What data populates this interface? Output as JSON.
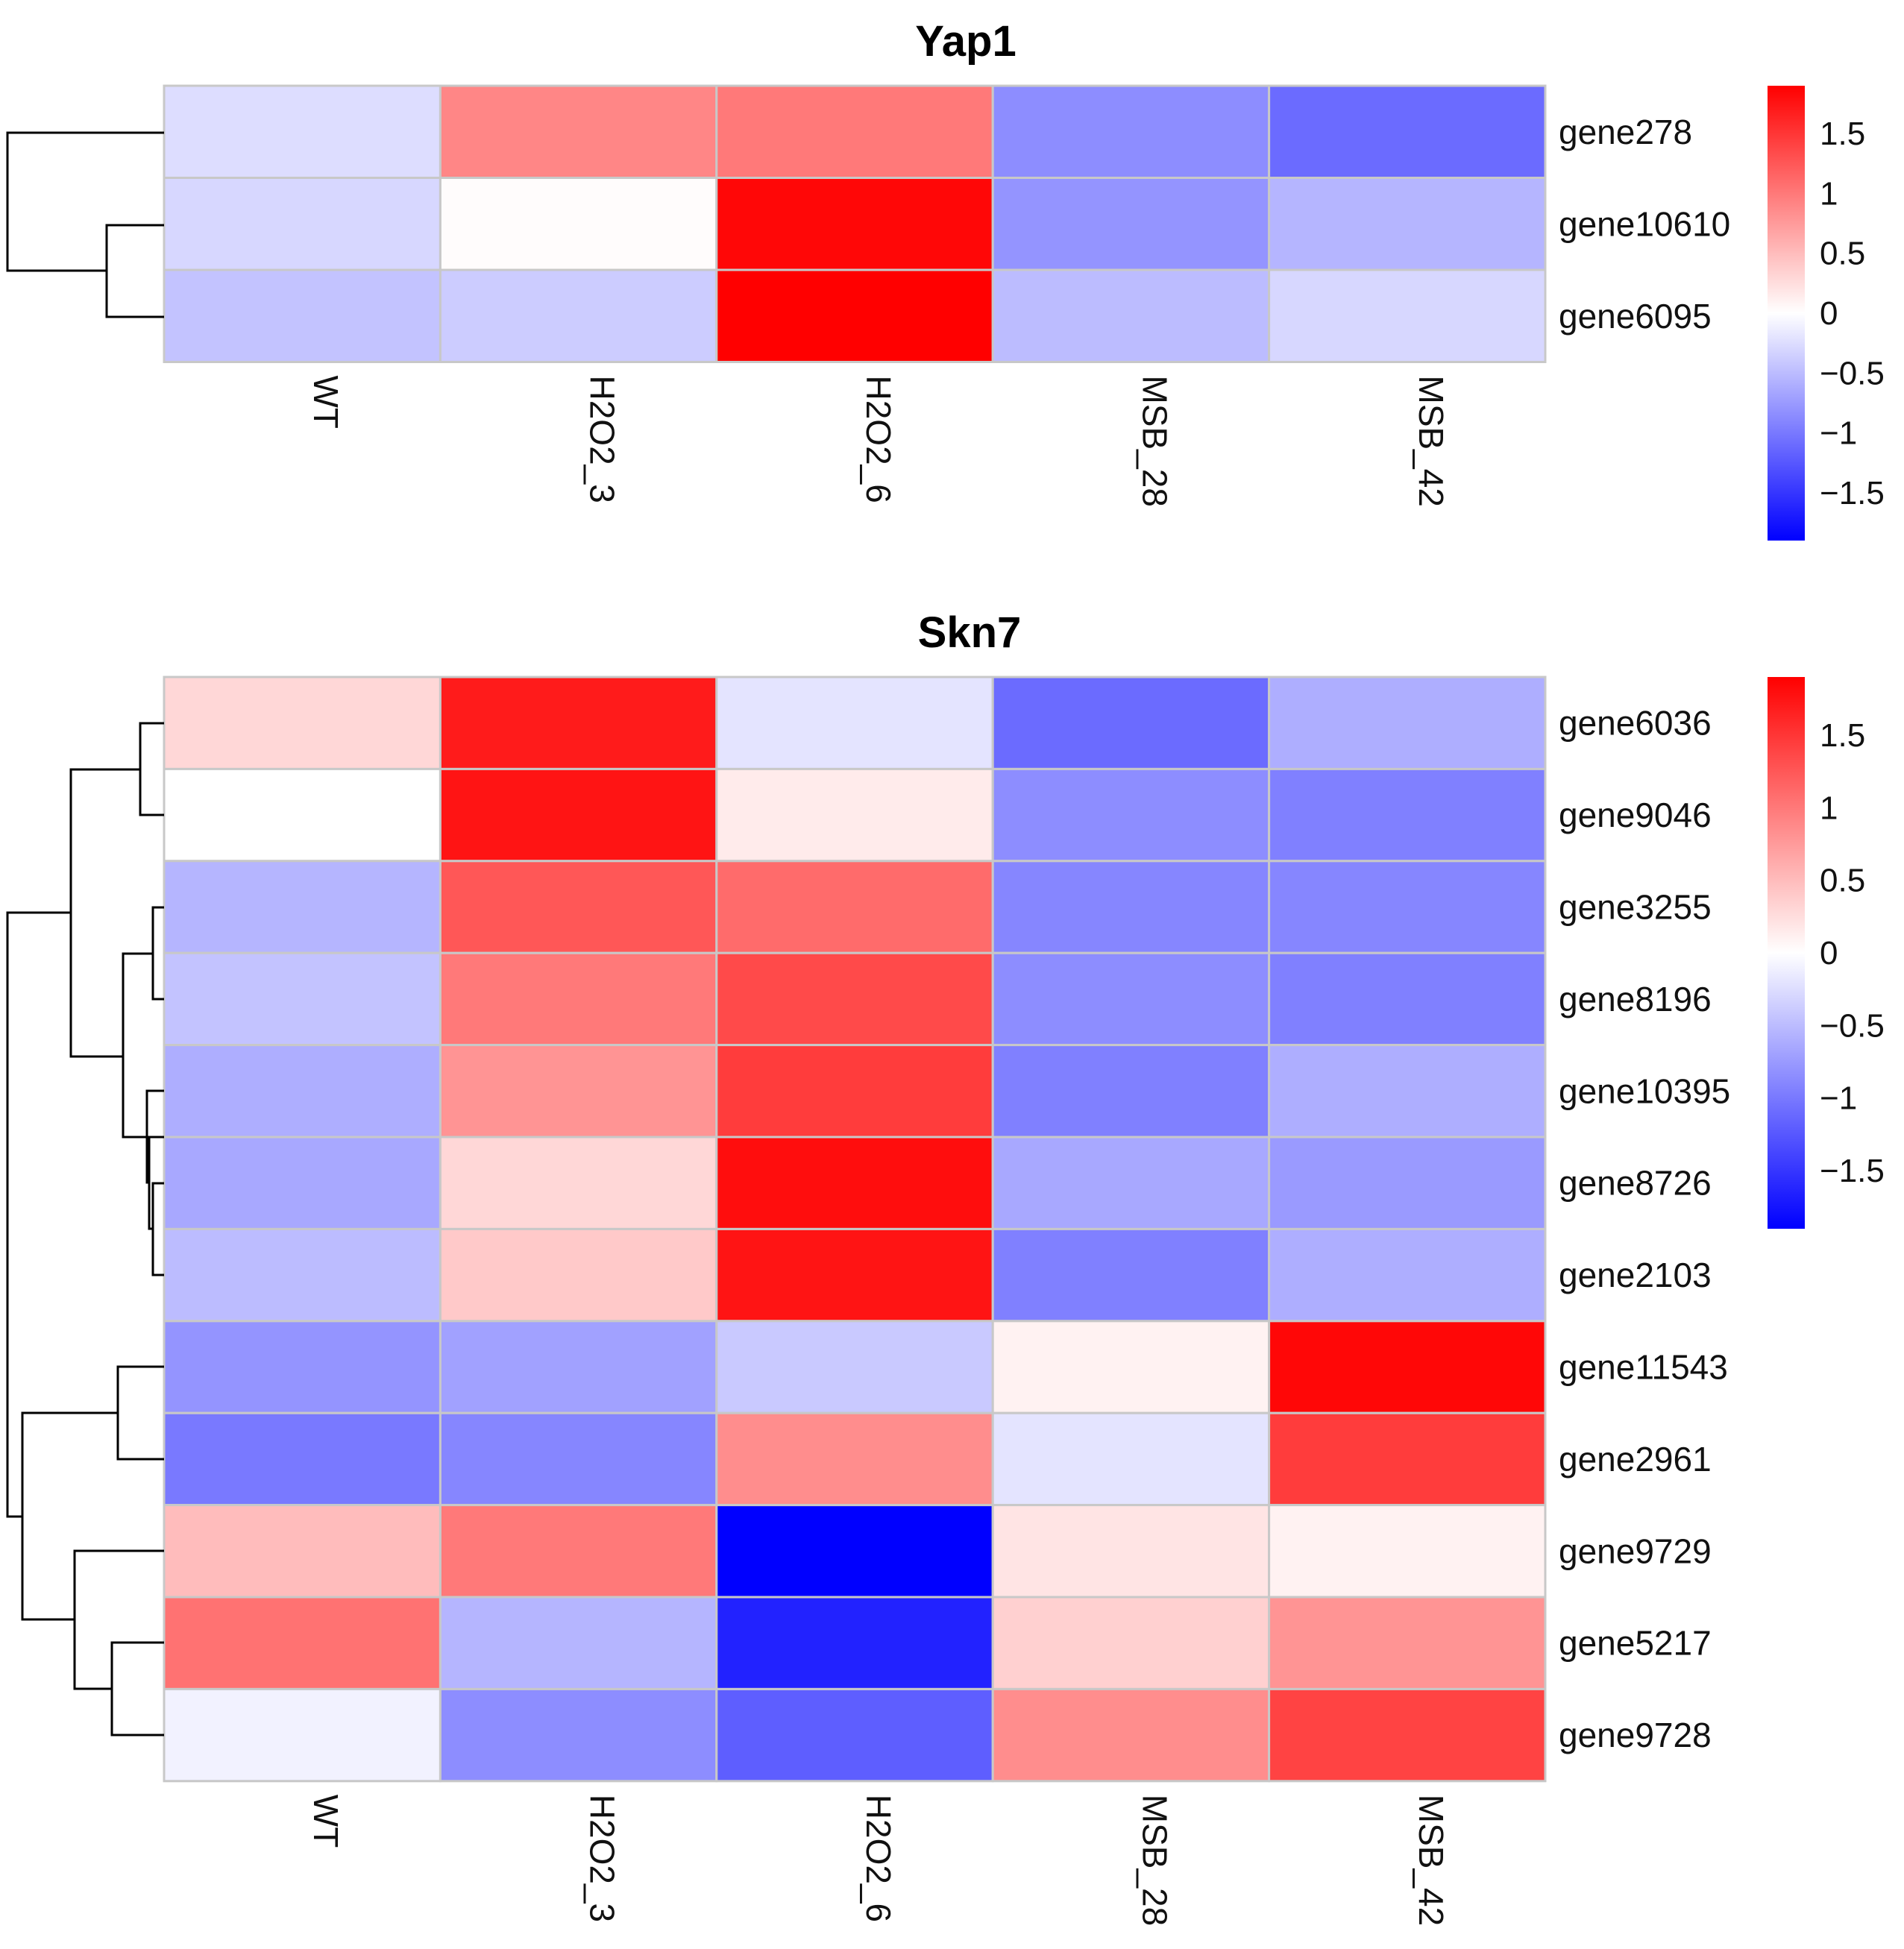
{
  "chart_data": [
    {
      "type": "heatmap",
      "title": "Yap1",
      "columns": [
        "WT",
        "H2O2_3",
        "H2O2_6",
        "MSB_28",
        "MSB_42"
      ],
      "rows": [
        "gene278",
        "gene10610",
        "gene6095"
      ],
      "values": [
        [
          -0.25,
          0.9,
          1.0,
          -0.85,
          -1.1
        ],
        [
          -0.3,
          0.02,
          1.85,
          -0.8,
          -0.55
        ],
        [
          -0.45,
          -0.38,
          1.9,
          -0.5,
          -0.3
        ]
      ],
      "legend": {
        "min": -1.9,
        "max": 1.9,
        "ticks": [
          1.5,
          1,
          0.5,
          0,
          -0.5,
          -1,
          -1.5
        ],
        "tick_labels": [
          "1.5",
          "1",
          "0.5",
          "0",
          "−0.5",
          "−1",
          "−1.5"
        ],
        "colors": [
          "#0000ff",
          "#ffffff",
          "#ff0000"
        ]
      }
    },
    {
      "type": "heatmap",
      "title": "Skn7",
      "columns": [
        "WT",
        "H2O2_3",
        "H2O2_6",
        "MSB_28",
        "MSB_42"
      ],
      "rows": [
        "gene6036",
        "gene9046",
        "gene3255",
        "gene8196",
        "gene10395",
        "gene8726",
        "gene2103",
        "gene11543",
        "gene2961",
        "gene9729",
        "gene5217",
        "gene9728"
      ],
      "values": [
        [
          0.3,
          1.7,
          -0.2,
          -1.1,
          -0.6
        ],
        [
          0.0,
          1.75,
          0.15,
          -0.85,
          -0.95
        ],
        [
          -0.55,
          1.25,
          1.1,
          -0.9,
          -0.9
        ],
        [
          -0.45,
          1.0,
          1.35,
          -0.85,
          -0.95
        ],
        [
          -0.6,
          0.8,
          1.45,
          -0.95,
          -0.6
        ],
        [
          -0.65,
          0.3,
          1.8,
          -0.65,
          -0.75
        ],
        [
          -0.5,
          0.4,
          1.75,
          -0.95,
          -0.6
        ],
        [
          -0.8,
          -0.7,
          -0.4,
          0.1,
          1.85
        ],
        [
          -1.0,
          -0.9,
          0.85,
          -0.2,
          1.45
        ],
        [
          0.5,
          1.0,
          -1.9,
          0.2,
          0.1
        ],
        [
          1.05,
          -0.55,
          -1.65,
          0.35,
          0.8
        ],
        [
          -0.1,
          -0.85,
          -1.2,
          0.85,
          1.4
        ]
      ],
      "legend": {
        "min": -1.9,
        "max": 1.9,
        "ticks": [
          1.5,
          1,
          0.5,
          0,
          -0.5,
          -1,
          -1.5
        ],
        "tick_labels": [
          "1.5",
          "1",
          "0.5",
          "0",
          "−0.5",
          "−1",
          "−1.5"
        ],
        "colors": [
          "#0000ff",
          "#ffffff",
          "#ff0000"
        ]
      }
    }
  ]
}
